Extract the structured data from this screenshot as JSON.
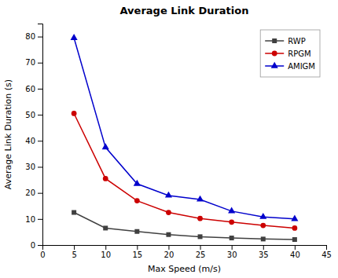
{
  "chart_data": {
    "type": "line",
    "title": "Average Link Duration",
    "xlabel": "Max Speed (m/s)",
    "ylabel": "Average Link Duration (s)",
    "x": [
      5,
      10,
      15,
      20,
      25,
      30,
      35,
      40
    ],
    "series": [
      {
        "name": "RWP",
        "color": "#404040",
        "marker": "square",
        "values": [
          12.5,
          6.5,
          5.2,
          4.0,
          3.2,
          2.7,
          2.3,
          2.1
        ]
      },
      {
        "name": "RPGM",
        "color": "#cc0000",
        "marker": "circle",
        "values": [
          50.5,
          25.5,
          17.0,
          12.5,
          10.2,
          8.8,
          7.5,
          6.5
        ]
      },
      {
        "name": "AMIGM",
        "color": "#0000cc",
        "marker": "triangle",
        "values": [
          79.5,
          37.5,
          23.5,
          19.0,
          17.5,
          13.0,
          10.8,
          10.0
        ]
      }
    ],
    "xlim": [
      0,
      45
    ],
    "ylim": [
      0,
      85
    ],
    "xticks": [
      0,
      5,
      10,
      15,
      20,
      25,
      30,
      35,
      40,
      45
    ],
    "yticks": [
      0,
      10,
      20,
      30,
      40,
      50,
      60,
      70,
      80
    ],
    "legend": "upper right",
    "grid": false
  }
}
